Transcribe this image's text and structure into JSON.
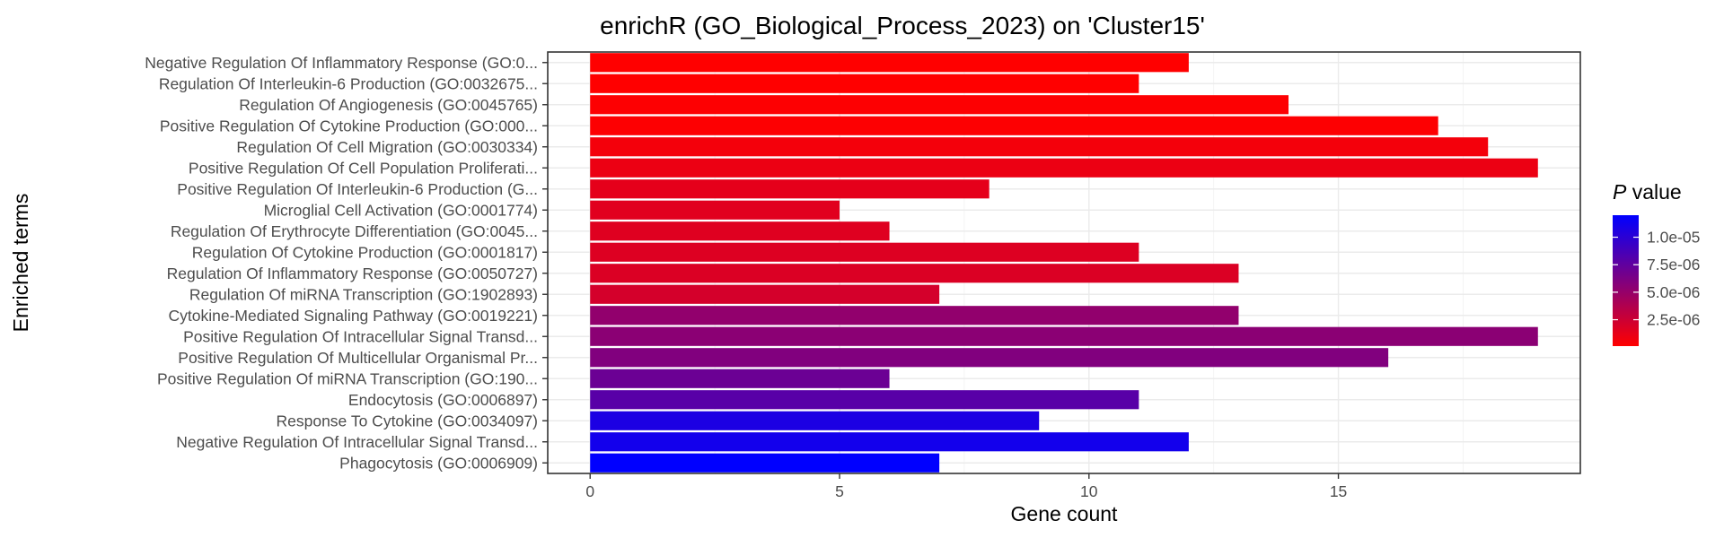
{
  "chart_data": {
    "type": "bar",
    "orientation": "horizontal",
    "title": "enrichR (GO_Biological_Process_2023) on 'Cluster15'",
    "xlabel": "Gene count",
    "ylabel": "Enriched terms",
    "xlim": [
      -0.85,
      19.85
    ],
    "xticks": [
      0,
      5,
      10,
      15
    ],
    "grid": true,
    "categories": [
      "Negative Regulation Of Inflammatory Response (GO:0...",
      "Regulation Of Interleukin-6 Production (GO:0032675...",
      "Regulation Of Angiogenesis (GO:0045765)",
      "Positive Regulation Of Cytokine Production (GO:000...",
      "Regulation Of Cell Migration (GO:0030334)",
      "Positive Regulation Of Cell Population Proliferati...",
      "Positive Regulation Of Interleukin-6 Production (G...",
      "Microglial Cell Activation (GO:0001774)",
      "Regulation Of Erythrocyte Differentiation (GO:0045...",
      "Regulation Of Cytokine Production (GO:0001817)",
      "Regulation Of Inflammatory Response (GO:0050727)",
      "Regulation Of miRNA Transcription (GO:1902893)",
      "Cytokine-Mediated Signaling Pathway (GO:0019221)",
      "Positive Regulation Of Intracellular Signal Transd...",
      "Positive Regulation Of Multicellular Organismal Pr...",
      "Positive Regulation Of miRNA Transcription (GO:190...",
      "Endocytosis (GO:0006897)",
      "Response To Cytokine (GO:0034097)",
      "Negative Regulation Of Intracellular Signal Transd...",
      "Phagocytosis (GO:0006909)"
    ],
    "values": [
      12,
      11,
      14,
      17,
      18,
      19,
      8,
      5,
      6,
      11,
      13,
      7,
      13,
      19,
      16,
      6,
      11,
      9,
      12,
      7
    ],
    "p_values": [
      1e-07,
      1e-07,
      2e-07,
      2e-07,
      6e-07,
      1e-06,
      1.3e-06,
      1.5e-06,
      1.6e-06,
      1.7e-06,
      1.8e-06,
      2.1e-06,
      5.2e-06,
      5.5e-06,
      6e-06,
      7e-06,
      7.9e-06,
      1.07e-05,
      1.11e-05,
      1.2e-05
    ],
    "color_scale": {
      "title_italic": "P",
      "title_rest": " value",
      "low_color": "#ff0000",
      "high_color": "#0000ff",
      "min": 1e-07,
      "max": 1.2e-05,
      "ticks": [
        2.5e-06,
        5e-06,
        7.5e-06,
        1e-05
      ],
      "tick_labels": [
        "2.5e-06",
        "5.0e-06",
        "7.5e-06",
        "1.0e-05"
      ]
    },
    "legend_position": "right"
  }
}
